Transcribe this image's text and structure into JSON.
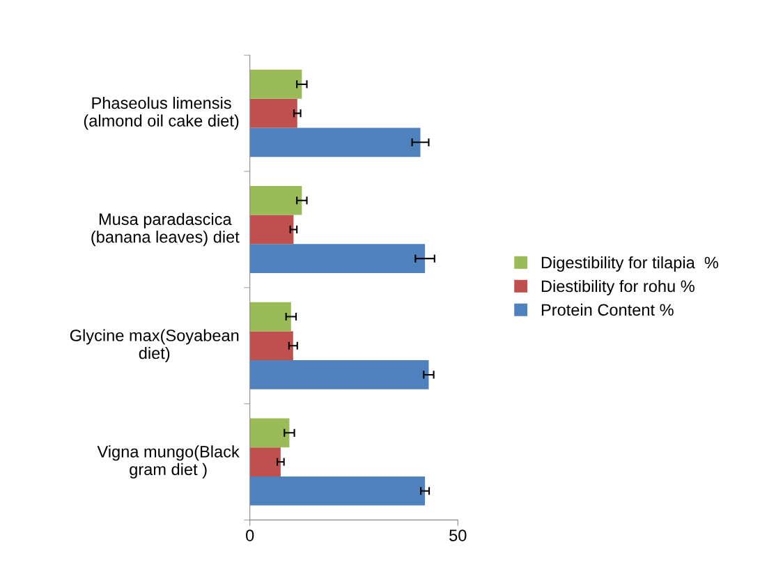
{
  "chart_data": {
    "type": "bar",
    "orientation": "horizontal",
    "categories": [
      "Phaseolus limensis\n(almond oil cake diet)",
      "Musa paradascica\n(banana leaves) diet",
      "Glycine max(Soyabean\ndiet)",
      "Vigna mungo(Black\ngram diet )"
    ],
    "series": [
      {
        "name": "Protein Content %",
        "color": "#4f81bd",
        "values": [
          41.0,
          42.1,
          43.0,
          42.1
        ],
        "errors": [
          2.0,
          2.3,
          1.2,
          1.0
        ]
      },
      {
        "name": "Diestibility for rohu %",
        "color": "#c0504d",
        "values": [
          11.4,
          10.5,
          10.4,
          7.4
        ],
        "errors": [
          0.8,
          0.8,
          1.0,
          0.8
        ]
      },
      {
        "name": "Digestibility for tilapia  %",
        "color": "#9bbb59",
        "values": [
          12.5,
          12.5,
          9.9,
          9.5
        ],
        "errors": [
          1.2,
          1.2,
          1.2,
          1.2
        ]
      }
    ],
    "xlim": [
      0,
      50
    ],
    "xticks": [
      0,
      50
    ],
    "grid": false,
    "legend": "right"
  }
}
